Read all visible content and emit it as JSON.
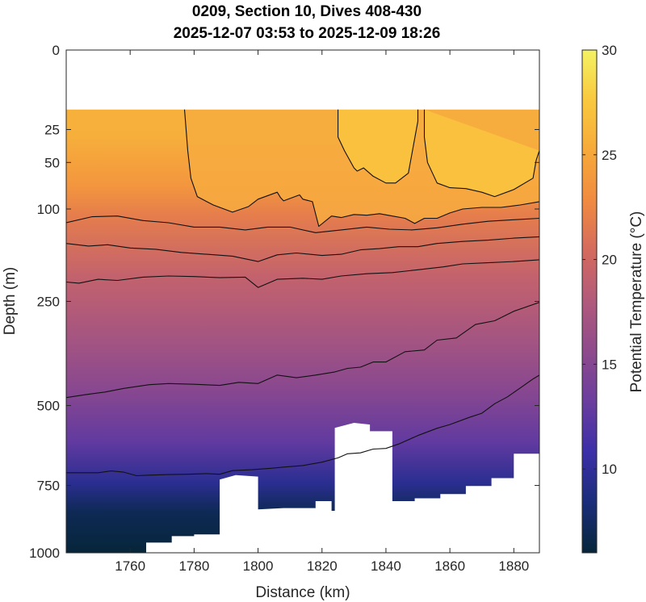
{
  "chart_data": {
    "type": "heatmap",
    "title": "0209, Section 10, Dives 408-430",
    "subtitle": "2025-12-07 03:53 to 2025-12-09 18:26",
    "xlabel": "Distance (km)",
    "ylabel": "Depth (m)",
    "colorbar_label": "Potential Temperature (°C)",
    "xlim": [
      1740,
      1888
    ],
    "ylim": [
      0,
      1000
    ],
    "y_scale": "sqrt",
    "y_direction": "reversed",
    "clim": [
      6,
      30
    ],
    "x_ticks": [
      "1760",
      "1780",
      "1800",
      "1820",
      "1840",
      "1860",
      "1880"
    ],
    "y_ticks": [
      "0",
      "25",
      "50",
      "100",
      "250",
      "500",
      "750",
      "1000"
    ],
    "colorbar_ticks": [
      "10",
      "15",
      "20",
      "25",
      "30"
    ],
    "data_top_depth_m": 14,
    "colormap": [
      "#06263a",
      "#1a2d7a",
      "#3b2fa8",
      "#6a3d9e",
      "#8e4a8c",
      "#b15a7c",
      "#d46a5e",
      "#f08a40",
      "#f7a93a",
      "#f9c83e",
      "#f4f263"
    ],
    "isotherms": [
      {
        "level": 26,
        "points": [
          [
            1777,
            14
          ],
          [
            1778,
            40
          ],
          [
            1779,
            65
          ],
          [
            1781,
            85
          ],
          [
            1786,
            95
          ],
          [
            1792,
            104
          ],
          [
            1797,
            97
          ],
          [
            1800,
            88
          ],
          [
            1806,
            80
          ],
          [
            1807,
            86
          ],
          [
            1808,
            90
          ],
          [
            1813,
            83
          ],
          [
            1814,
            88
          ],
          [
            1817,
            91
          ],
          [
            1819,
            123
          ],
          [
            1823,
            109
          ],
          [
            1826,
            111
          ],
          [
            1830,
            107
          ],
          [
            1834,
            108
          ],
          [
            1838,
            106
          ],
          [
            1842,
            109
          ],
          [
            1846,
            112
          ],
          [
            1849,
            119
          ],
          [
            1852,
            112
          ],
          [
            1856,
            112
          ],
          [
            1860,
            105
          ],
          [
            1864,
            100
          ],
          [
            1870,
            98
          ],
          [
            1876,
            98
          ],
          [
            1882,
            95
          ],
          [
            1888,
            91
          ]
        ]
      },
      {
        "level": 27,
        "points": [
          [
            1825,
            14
          ],
          [
            1825,
            30
          ],
          [
            1827,
            40
          ],
          [
            1830,
            55
          ],
          [
            1831,
            58
          ],
          [
            1833,
            55
          ],
          [
            1836,
            63
          ],
          [
            1840,
            70
          ],
          [
            1843,
            70
          ],
          [
            1847,
            60
          ],
          [
            1850,
            20
          ],
          [
            1850,
            14
          ]
        ]
      },
      {
        "level": 27,
        "points": [
          [
            1852,
            14
          ],
          [
            1852,
            30
          ],
          [
            1853,
            50
          ],
          [
            1856,
            70
          ],
          [
            1860,
            75
          ],
          [
            1865,
            76
          ],
          [
            1870,
            80
          ],
          [
            1874,
            85
          ],
          [
            1880,
            77
          ],
          [
            1886,
            65
          ],
          [
            1887,
            48
          ],
          [
            1888,
            40
          ]
        ]
      },
      {
        "level": 24,
        "points": [
          [
            1740,
            118
          ],
          [
            1748,
            110
          ],
          [
            1756,
            109
          ],
          [
            1764,
            115
          ],
          [
            1772,
            118
          ],
          [
            1780,
            124
          ],
          [
            1788,
            124
          ],
          [
            1796,
            128
          ],
          [
            1803,
            124
          ],
          [
            1810,
            124
          ],
          [
            1818,
            132
          ],
          [
            1826,
            128
          ],
          [
            1834,
            124
          ],
          [
            1841,
            127
          ],
          [
            1848,
            128
          ],
          [
            1856,
            125
          ],
          [
            1864,
            120
          ],
          [
            1872,
            116
          ],
          [
            1880,
            114
          ],
          [
            1888,
            112
          ]
        ]
      },
      {
        "level": 22,
        "points": [
          [
            1740,
            148
          ],
          [
            1747,
            152
          ],
          [
            1753,
            150
          ],
          [
            1760,
            155
          ],
          [
            1768,
            157
          ],
          [
            1776,
            162
          ],
          [
            1784,
            165
          ],
          [
            1792,
            168
          ],
          [
            1800,
            177
          ],
          [
            1806,
            166
          ],
          [
            1812,
            163
          ],
          [
            1820,
            167
          ],
          [
            1826,
            165
          ],
          [
            1832,
            158
          ],
          [
            1838,
            156
          ],
          [
            1844,
            153
          ],
          [
            1850,
            153
          ],
          [
            1856,
            148
          ],
          [
            1864,
            145
          ],
          [
            1872,
            143
          ],
          [
            1880,
            140
          ],
          [
            1888,
            138
          ]
        ]
      },
      {
        "level": 20,
        "points": [
          [
            1740,
            213
          ],
          [
            1744,
            215
          ],
          [
            1750,
            208
          ],
          [
            1756,
            210
          ],
          [
            1764,
            204
          ],
          [
            1772,
            202
          ],
          [
            1780,
            203
          ],
          [
            1788,
            205
          ],
          [
            1796,
            204
          ],
          [
            1800,
            223
          ],
          [
            1806,
            208
          ],
          [
            1814,
            206
          ],
          [
            1820,
            208
          ],
          [
            1826,
            202
          ],
          [
            1834,
            198
          ],
          [
            1842,
            196
          ],
          [
            1850,
            191
          ],
          [
            1858,
            186
          ],
          [
            1864,
            181
          ],
          [
            1872,
            179
          ],
          [
            1880,
            177
          ],
          [
            1888,
            174
          ]
        ]
      },
      {
        "level": 18,
        "points": [
          [
            1740,
            478
          ],
          [
            1746,
            470
          ],
          [
            1752,
            463
          ],
          [
            1758,
            453
          ],
          [
            1766,
            443
          ],
          [
            1772,
            440
          ],
          [
            1780,
            442
          ],
          [
            1788,
            445
          ],
          [
            1794,
            437
          ],
          [
            1800,
            440
          ],
          [
            1806,
            418
          ],
          [
            1812,
            425
          ],
          [
            1818,
            418
          ],
          [
            1824,
            410
          ],
          [
            1828,
            401
          ],
          [
            1832,
            398
          ],
          [
            1836,
            385
          ],
          [
            1840,
            385
          ],
          [
            1846,
            360
          ],
          [
            1852,
            356
          ],
          [
            1856,
            333
          ],
          [
            1862,
            328
          ],
          [
            1868,
            298
          ],
          [
            1874,
            290
          ],
          [
            1880,
            270
          ],
          [
            1888,
            252
          ]
        ]
      },
      {
        "level": 14,
        "points": [
          [
            1740,
            707
          ],
          [
            1746,
            707
          ],
          [
            1750,
            707
          ],
          [
            1754,
            701
          ],
          [
            1758,
            705
          ],
          [
            1762,
            717
          ],
          [
            1766,
            715
          ],
          [
            1772,
            713
          ],
          [
            1778,
            712
          ],
          [
            1784,
            710
          ],
          [
            1788,
            712
          ],
          [
            1792,
            700
          ],
          [
            1798,
            697
          ],
          [
            1804,
            692
          ],
          [
            1808,
            688
          ],
          [
            1814,
            683
          ],
          [
            1820,
            672
          ],
          [
            1825,
            658
          ],
          [
            1828,
            645
          ],
          [
            1832,
            642
          ],
          [
            1836,
            630
          ],
          [
            1840,
            628
          ],
          [
            1844,
            614
          ],
          [
            1850,
            588
          ],
          [
            1856,
            566
          ],
          [
            1860,
            555
          ],
          [
            1866,
            534
          ],
          [
            1870,
            522
          ],
          [
            1874,
            495
          ],
          [
            1878,
            476
          ],
          [
            1882,
            452
          ],
          [
            1886,
            428
          ],
          [
            1888,
            418
          ]
        ]
      }
    ],
    "missing_regions": [
      {
        "label": "no data above first sample",
        "polygon": [
          [
            1740,
            0
          ],
          [
            1888,
            0
          ],
          [
            1888,
            14
          ],
          [
            1740,
            14
          ]
        ]
      },
      {
        "label": "bathymetry",
        "polygon": [
          [
            1740,
            1000
          ],
          [
            1765,
            1000
          ],
          [
            1765,
            960
          ],
          [
            1773,
            960
          ],
          [
            1773,
            935
          ],
          [
            1780,
            935
          ],
          [
            1780,
            928
          ],
          [
            1788,
            928
          ],
          [
            1788,
            730
          ],
          [
            1793,
            715
          ],
          [
            1800,
            720
          ],
          [
            1800,
            835
          ],
          [
            1808,
            830
          ],
          [
            1818,
            830
          ],
          [
            1818,
            805
          ],
          [
            1823,
            805
          ],
          [
            1823,
            840
          ],
          [
            1824,
            840
          ],
          [
            1824,
            565
          ],
          [
            1830,
            550
          ],
          [
            1835,
            555
          ],
          [
            1835,
            575
          ],
          [
            1842,
            575
          ],
          [
            1842,
            805
          ],
          [
            1849,
            805
          ],
          [
            1849,
            795
          ],
          [
            1857,
            795
          ],
          [
            1857,
            780
          ],
          [
            1865,
            780
          ],
          [
            1865,
            752
          ],
          [
            1873,
            752
          ],
          [
            1873,
            725
          ],
          [
            1880,
            725
          ],
          [
            1880,
            710
          ],
          [
            1880,
            645
          ],
          [
            1888,
            645
          ],
          [
            1888,
            1000
          ]
        ]
      }
    ]
  }
}
